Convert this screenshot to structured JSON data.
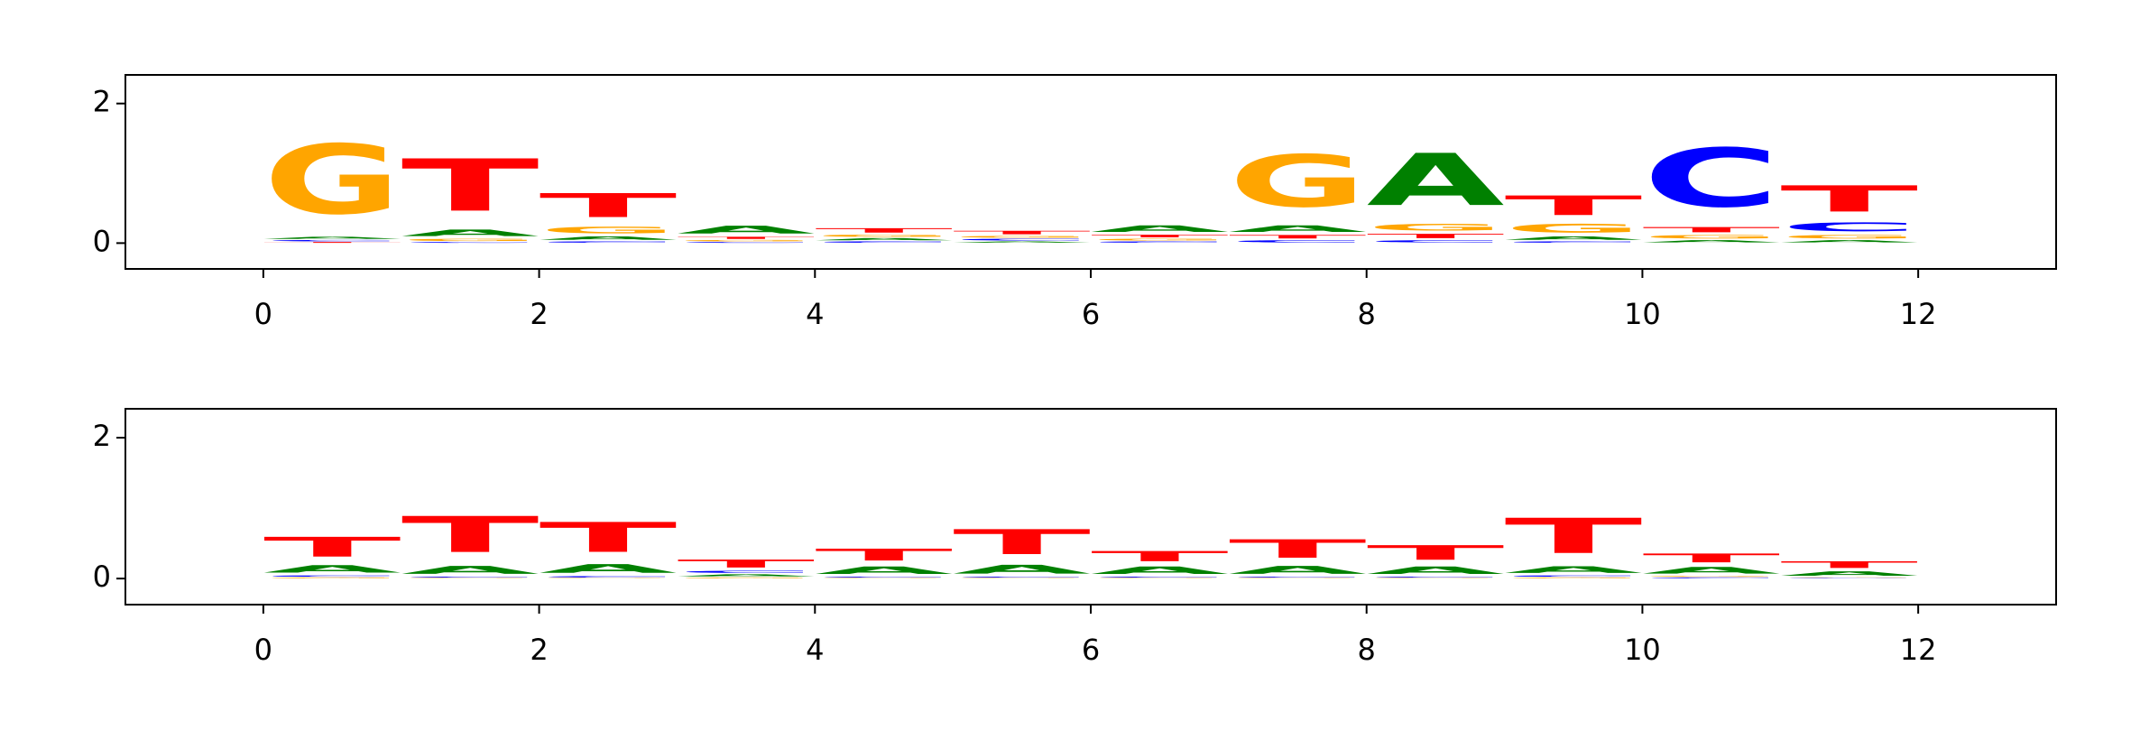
{
  "chart_data": [
    {
      "type": "logo",
      "x": [
        0,
        1,
        2,
        3,
        4,
        5,
        6,
        7,
        8,
        9,
        10,
        11
      ],
      "series": [
        {
          "name": "A",
          "color": "#008000",
          "values": [
            0.05,
            0.15,
            0.08,
            0.18,
            0.05,
            0.03,
            0.15,
            0.15,
            1.2,
            0.08,
            0.05,
            0.05
          ]
        },
        {
          "name": "C",
          "color": "#0000ff",
          "values": [
            0.03,
            0.02,
            0.03,
            0.02,
            0.03,
            0.04,
            0.03,
            0.05,
            0.05,
            0.03,
            1.35,
            0.2
          ]
        },
        {
          "name": "G",
          "color": "#ffa500",
          "values": [
            1.6,
            0.05,
            0.15,
            0.03,
            0.05,
            0.04,
            0.04,
            1.2,
            0.15,
            0.2,
            0.08,
            0.08
          ]
        },
        {
          "name": "T",
          "color": "#ff0000",
          "values": [
            0.02,
            1.2,
            0.55,
            0.05,
            0.1,
            0.08,
            0.06,
            0.08,
            0.1,
            0.45,
            0.12,
            0.6
          ]
        }
      ],
      "xlim": [
        -1,
        13
      ],
      "xticks": [
        0,
        2,
        4,
        6,
        8,
        10,
        12
      ],
      "ylim": [
        -0.37,
        2.41
      ],
      "yticks": [
        0,
        2
      ]
    },
    {
      "type": "logo",
      "x": [
        0,
        1,
        2,
        3,
        4,
        5,
        6,
        7,
        8,
        9,
        10,
        11
      ],
      "series": [
        {
          "name": "A",
          "color": "#008000",
          "values": [
            0.17,
            0.18,
            0.2,
            0.05,
            0.17,
            0.2,
            0.17,
            0.18,
            0.17,
            0.15,
            0.15,
            0.1
          ]
        },
        {
          "name": "C",
          "color": "#0000ff",
          "values": [
            0.03,
            0.02,
            0.03,
            0.05,
            0.02,
            0.02,
            0.02,
            0.02,
            0.02,
            0.03,
            0.02,
            0.01
          ]
        },
        {
          "name": "G",
          "color": "#ffa500",
          "values": [
            0.02,
            0.01,
            0.01,
            0.02,
            0.01,
            0.01,
            0.01,
            0.01,
            0.01,
            0.02,
            0.02,
            0.01
          ]
        },
        {
          "name": "T",
          "color": "#ff0000",
          "values": [
            0.45,
            0.82,
            0.68,
            0.18,
            0.27,
            0.57,
            0.23,
            0.42,
            0.33,
            0.8,
            0.2,
            0.15
          ]
        }
      ],
      "xlim": [
        -1,
        13
      ],
      "xticks": [
        0,
        2,
        4,
        6,
        8,
        10,
        12
      ],
      "ylim": [
        -0.37,
        2.41
      ],
      "yticks": [
        0,
        2
      ]
    }
  ]
}
